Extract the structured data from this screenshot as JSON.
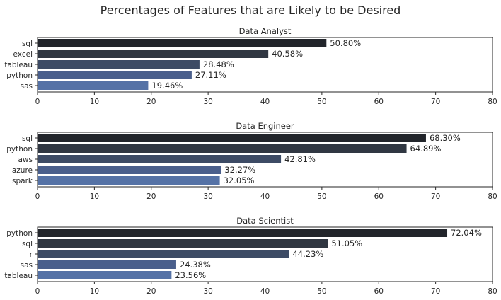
{
  "figure_title": "Percentages of Features that are Likely to be Desired",
  "chart_data": [
    {
      "type": "bar",
      "orientation": "horizontal",
      "title": "Data Analyst",
      "categories": [
        "sql",
        "excel",
        "tableau",
        "python",
        "sas"
      ],
      "values": [
        50.8,
        40.58,
        28.48,
        27.11,
        19.46
      ],
      "data_labels": [
        "50.80%",
        "40.58%",
        "28.48%",
        "27.11%",
        "19.46%"
      ],
      "xlim": [
        0,
        80
      ],
      "xticks": [
        0,
        10,
        20,
        30,
        40,
        50,
        60,
        70,
        80
      ],
      "xlabel": "",
      "ylabel": "",
      "grid": false
    },
    {
      "type": "bar",
      "orientation": "horizontal",
      "title": "Data Engineer",
      "categories": [
        "sql",
        "python",
        "aws",
        "azure",
        "spark"
      ],
      "values": [
        68.3,
        64.89,
        42.81,
        32.27,
        32.05
      ],
      "data_labels": [
        "68.30%",
        "64.89%",
        "42.81%",
        "32.27%",
        "32.05%"
      ],
      "xlim": [
        0,
        80
      ],
      "xticks": [
        0,
        10,
        20,
        30,
        40,
        50,
        60,
        70,
        80
      ],
      "xlabel": "",
      "ylabel": "",
      "grid": false
    },
    {
      "type": "bar",
      "orientation": "horizontal",
      "title": "Data Scientist",
      "categories": [
        "python",
        "sql",
        "r",
        "sas",
        "tableau"
      ],
      "values": [
        72.04,
        51.05,
        44.23,
        24.38,
        23.56
      ],
      "data_labels": [
        "72.04%",
        "51.05%",
        "44.23%",
        "24.38%",
        "23.56%"
      ],
      "xlim": [
        0,
        80
      ],
      "xticks": [
        0,
        10,
        20,
        30,
        40,
        50,
        60,
        70,
        80
      ],
      "xlabel": "",
      "ylabel": "",
      "grid": false
    }
  ],
  "colors": {
    "bars": [
      "#22252b",
      "#303742",
      "#3d4b65",
      "#4a5f8c",
      "#5572a6"
    ],
    "text": "#262626",
    "axes": "#262626",
    "background": "#ffffff"
  }
}
